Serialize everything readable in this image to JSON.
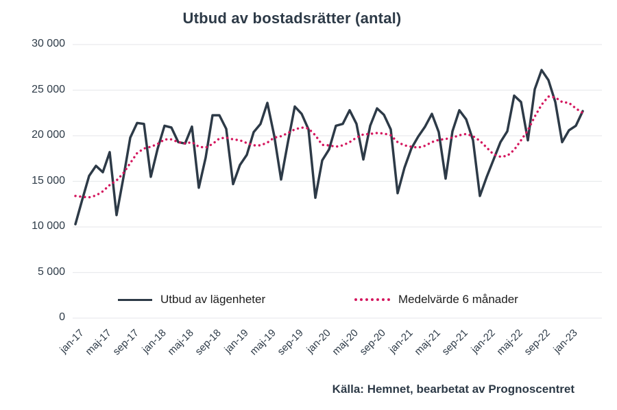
{
  "title": "Utbud av bostadsrätter (antal)",
  "source": "Källa: Hemnet, bearbetat av Prognoscentret",
  "colors": {
    "series_main": "#2d3a47",
    "series_avg": "#d4175e",
    "gridline": "#e9ebed",
    "text": "#2d3a47"
  },
  "chart_data": {
    "type": "line",
    "title": "Utbud av bostadsrätter (antal)",
    "xlabel": "",
    "ylabel": "",
    "ylim": [
      0,
      30000
    ],
    "grid": "horizontal-only",
    "legend_position": "bottom-inside",
    "y_ticks": [
      {
        "value": 30000,
        "label": "30 000"
      },
      {
        "value": 25000,
        "label": "25 000"
      },
      {
        "value": 20000,
        "label": "20 000"
      },
      {
        "value": 15000,
        "label": "15 000"
      },
      {
        "value": 10000,
        "label": "10 000"
      },
      {
        "value": 5000,
        "label": "5 000"
      },
      {
        "value": 0,
        "label": "0"
      }
    ],
    "x_ticks": [
      "jan-17",
      "maj-17",
      "sep-17",
      "jan-18",
      "maj-18",
      "sep-18",
      "jan-19",
      "maj-19",
      "sep-19",
      "jan-20",
      "maj-20",
      "sep-20",
      "jan-21",
      "maj-21",
      "sep-21",
      "jan-22",
      "maj-22",
      "sep-22",
      "jan-23"
    ],
    "x_tick_every_n_months": 4,
    "x": [
      "jan-17",
      "feb-17",
      "mar-17",
      "apr-17",
      "maj-17",
      "jun-17",
      "jul-17",
      "aug-17",
      "sep-17",
      "okt-17",
      "nov-17",
      "dec-17",
      "jan-18",
      "feb-18",
      "mar-18",
      "apr-18",
      "maj-18",
      "jun-18",
      "jul-18",
      "aug-18",
      "sep-18",
      "okt-18",
      "nov-18",
      "dec-18",
      "jan-19",
      "feb-19",
      "mar-19",
      "apr-19",
      "maj-19",
      "jun-19",
      "jul-19",
      "aug-19",
      "sep-19",
      "okt-19",
      "nov-19",
      "dec-19",
      "jan-20",
      "feb-20",
      "mar-20",
      "apr-20",
      "maj-20",
      "jun-20",
      "jul-20",
      "aug-20",
      "sep-20",
      "okt-20",
      "nov-20",
      "dec-20",
      "jan-21",
      "feb-21",
      "mar-21",
      "apr-21",
      "maj-21",
      "jun-21",
      "jul-21",
      "aug-21",
      "sep-21",
      "okt-21",
      "nov-21",
      "dec-21",
      "jan-22",
      "feb-22",
      "mar-22",
      "apr-22",
      "maj-22",
      "jun-22",
      "jul-22",
      "aug-22",
      "sep-22",
      "okt-22",
      "nov-22",
      "dec-22",
      "jan-23",
      "feb-23",
      "mar-23"
    ],
    "series": [
      {
        "name": "Utbud av lägenheter",
        "style": "solid",
        "color": "#2d3a47",
        "values": [
          10300,
          13000,
          15600,
          16700,
          16000,
          18200,
          11300,
          15400,
          19800,
          21400,
          21300,
          15500,
          18600,
          21100,
          20900,
          19300,
          19150,
          21000,
          14300,
          17600,
          22250,
          22250,
          20750,
          14700,
          16800,
          17900,
          20400,
          21300,
          23600,
          20000,
          15200,
          19300,
          23200,
          22400,
          20700,
          13200,
          17300,
          18500,
          21100,
          21300,
          22800,
          21300,
          17400,
          21100,
          23000,
          22300,
          20700,
          13700,
          16500,
          18600,
          19900,
          21000,
          22400,
          20400,
          15300,
          20500,
          22800,
          21800,
          19500,
          13400,
          15500,
          17400,
          19300,
          20500,
          24400,
          23700,
          19500,
          25100,
          27200,
          26100,
          23700,
          19300,
          20600,
          21100,
          22700
        ]
      },
      {
        "name": "Medelvärde 6 månader",
        "style": "dotted",
        "color": "#d4175e",
        "values": [
          13400,
          13300,
          13250,
          13450,
          13900,
          14600,
          15100,
          15900,
          17000,
          18100,
          18600,
          18800,
          19100,
          19600,
          19600,
          19300,
          19150,
          19300,
          18800,
          18700,
          19100,
          19700,
          19800,
          19600,
          19500,
          19200,
          18950,
          18950,
          19250,
          19800,
          19950,
          20300,
          20700,
          20900,
          20800,
          20050,
          19000,
          18950,
          18800,
          18950,
          19300,
          19800,
          20150,
          20200,
          20300,
          20250,
          20050,
          19300,
          18950,
          18800,
          18700,
          18900,
          19300,
          19550,
          19650,
          19800,
          20050,
          20200,
          19950,
          19450,
          18700,
          17950,
          17700,
          17800,
          18450,
          19500,
          20600,
          22100,
          23400,
          24300,
          24200,
          23700,
          23600,
          23000,
          22500
        ]
      }
    ]
  },
  "legend": {
    "item1": "Utbud av lägenheter",
    "item2": "Medelvärde 6 månader"
  }
}
